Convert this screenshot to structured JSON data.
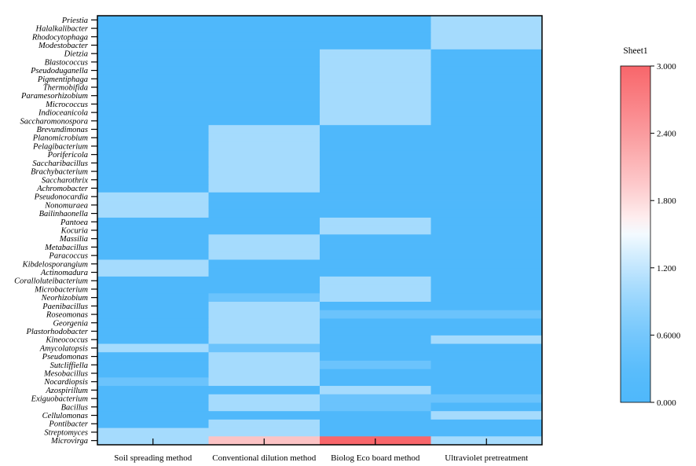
{
  "chart_data": {
    "type": "heatmap",
    "title": "",
    "xlabel": "",
    "ylabel": "",
    "columns": [
      "Soil spreading method",
      "Conventional dilution method",
      "Biolog Eco board method",
      "Ultraviolet pretreatment"
    ],
    "rows": [
      "Priestia",
      "Halalkalibacter",
      "Rhodocytophaga",
      "Modestobacter",
      "Dietzia",
      "Blastococcus",
      "Pseudoduganella",
      "Pigmentiphaga",
      "Thermobifida",
      "Paramesorhizobium",
      "Micrococcus",
      "Indioceanicola",
      "Saccharomonospora",
      "Brevundimonas",
      "Planomicrobium",
      "Pelagibacterium",
      "Porifericola",
      "Saccharibacillus",
      "Brachybacterium",
      "Saccharothrix",
      "Achromobacter",
      "Pseudonocardia",
      "Nonomuraea",
      "Bailinhaonella",
      "Pantoea",
      "Kocuria",
      "Massilia",
      "Metabacillus",
      "Paracoccus",
      "Kibdelosporangium",
      "Actinomadura",
      "Corallo­luteibacterium",
      "Microbacterium",
      "Neorhizobium",
      "Paenibacillus",
      "Roseomonas",
      "Georgenia",
      "Plastorhodobacter",
      "Kineococcus",
      "Amycolatopsis",
      "Pseudomonas",
      "Sutcliffiella",
      "Mesobacillus",
      "Nocardiopsis",
      "Azospirillum",
      "Exiguobacterium",
      "Bacillus",
      "Cellulomonas",
      "Pontibacter",
      "Streptomyces",
      "Microvirga"
    ],
    "values": [
      [
        0,
        0,
        0,
        1
      ],
      [
        0,
        0,
        0,
        1
      ],
      [
        0,
        0,
        0,
        1
      ],
      [
        0,
        0,
        0,
        1
      ],
      [
        0,
        0,
        1,
        0
      ],
      [
        0,
        0,
        1,
        0
      ],
      [
        0,
        0,
        1,
        0
      ],
      [
        0,
        0,
        1,
        0
      ],
      [
        0,
        0,
        1,
        0
      ],
      [
        0,
        0,
        1,
        0
      ],
      [
        0,
        0,
        1,
        0
      ],
      [
        0,
        0,
        1,
        0
      ],
      [
        0,
        0,
        1,
        0
      ],
      [
        0,
        1,
        0,
        0
      ],
      [
        0,
        1,
        0,
        0
      ],
      [
        0,
        1,
        0,
        0
      ],
      [
        0,
        1,
        0,
        0
      ],
      [
        0,
        1,
        0,
        0
      ],
      [
        0,
        1,
        0,
        0
      ],
      [
        0,
        1,
        0,
        0
      ],
      [
        0,
        1,
        0,
        0
      ],
      [
        1,
        0,
        0,
        0
      ],
      [
        1,
        0,
        0,
        0
      ],
      [
        1,
        0,
        0,
        0
      ],
      [
        0,
        0,
        1,
        0
      ],
      [
        0,
        0,
        1,
        0
      ],
      [
        0,
        1,
        0,
        0
      ],
      [
        0,
        1,
        0,
        0
      ],
      [
        0,
        1,
        0,
        0
      ],
      [
        1,
        0,
        0,
        0
      ],
      [
        1,
        0,
        0,
        0
      ],
      [
        0,
        0,
        1,
        0
      ],
      [
        0,
        0,
        1,
        0
      ],
      [
        0,
        0.5,
        1,
        0
      ],
      [
        0,
        1,
        0,
        0
      ],
      [
        0,
        1,
        0.5,
        0.5
      ],
      [
        0,
        1,
        0,
        0
      ],
      [
        0,
        1,
        0,
        0
      ],
      [
        0,
        1,
        0,
        1
      ],
      [
        1,
        0.5,
        0,
        0
      ],
      [
        0,
        1,
        0,
        0
      ],
      [
        0,
        1,
        0.5,
        0
      ],
      [
        0,
        1,
        0,
        0
      ],
      [
        0.5,
        1,
        0,
        0
      ],
      [
        0,
        0,
        1,
        0
      ],
      [
        0,
        1,
        0.5,
        0.5
      ],
      [
        0,
        1,
        0.5,
        0
      ],
      [
        0,
        0,
        0,
        1
      ],
      [
        0,
        1,
        0,
        0
      ],
      [
        1,
        1,
        0,
        0
      ],
      [
        1,
        2,
        3,
        1
      ]
    ],
    "colorbar": {
      "title": "Sheet1",
      "min": 0,
      "max": 3,
      "ticks": [
        0,
        0.6,
        1.2,
        1.8,
        2.4,
        3.0
      ],
      "tick_labels": [
        "0.000",
        "0.6000",
        "1.200",
        "1.800",
        "2.400",
        "3.000"
      ],
      "position": "right"
    },
    "colors": {
      "low": "#4fb8fb",
      "mid": "#ffffff",
      "high": "#f8666b"
    }
  }
}
